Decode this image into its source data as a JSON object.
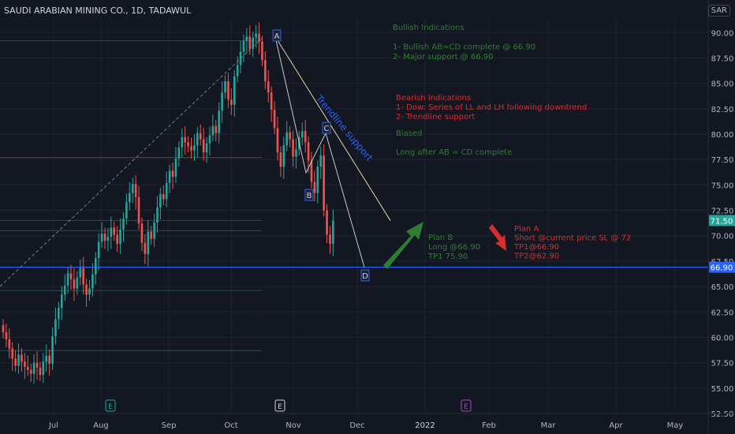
{
  "header": {
    "title": "SAUDI ARABIAN MINING CO., 1D, TADAWUL",
    "currency": "SAR"
  },
  "colors": {
    "bg": "#131722",
    "up": "#26a69a",
    "down": "#ef5350",
    "grid": "#1e222d",
    "axis_text": "#b2b5be",
    "green_text": "#2e7d32",
    "red_text": "#d32f2f",
    "blue_line": "#2962ff"
  },
  "chart_data": {
    "type": "candlestick",
    "ylim": [
      52.5,
      91.5
    ],
    "y_ticks": [
      "52.50",
      "55.00",
      "57.50",
      "60.00",
      "62.50",
      "65.00",
      "67.50",
      "70.00",
      "72.50",
      "75.00",
      "77.50",
      "80.00",
      "82.50",
      "85.00",
      "87.50",
      "90.00"
    ],
    "x_ticks": [
      "Jul",
      "Aug",
      "Sep",
      "Oct",
      "Nov",
      "Dec",
      "2022",
      "Feb",
      "Mar",
      "Apr",
      "May"
    ],
    "price_labels": [
      {
        "value": "71.50",
        "price": 71.5,
        "color": "#26a69a"
      },
      {
        "value": "66.90",
        "price": 66.9,
        "color": "#2962ff"
      }
    ],
    "horizontal_lines": [
      {
        "price": 89.2,
        "color": "#2e4a47"
      },
      {
        "price": 77.7,
        "color": "#8b2f3a"
      },
      {
        "price": 71.5,
        "color": "#2e4a47"
      },
      {
        "price": 70.5,
        "color": "#2e4a47"
      },
      {
        "price": 66.9,
        "color": "#2962ff"
      },
      {
        "price": 64.6,
        "color": "#2e4a47"
      },
      {
        "price": 58.7,
        "color": "#2e4a47"
      }
    ],
    "pattern_points": [
      {
        "label": "A",
        "price": 89.5
      },
      {
        "label": "B",
        "price": 76.2
      },
      {
        "label": "C",
        "price": 80.1
      },
      {
        "label": "D",
        "price": 66.9
      }
    ],
    "trendline_label": "Trendline support",
    "earnings_markers": [
      "E",
      "E",
      "E"
    ],
    "annotations": {
      "bullish": [
        "Bullish Indications",
        "1- Bullish AB=CD complete @ 66.90",
        "2- Major support @ 66.90"
      ],
      "bearish": [
        "Bearish Indications",
        "1- Dow: Series of LL and LH following downtrend",
        "2- Trendline support"
      ],
      "biased": [
        "Biased",
        "Long after AB = CD complete"
      ],
      "plan_b": [
        "Plan B",
        "Long @66.90",
        "TP1 75.90"
      ],
      "plan_a": [
        "Plan A",
        "Short @current price SL @ 72",
        "TP1@66.90",
        "TP2@62.90"
      ]
    },
    "series": {
      "close": [
        60.5,
        59.8,
        58.9,
        57.9,
        57.2,
        58.3,
        57.6,
        57.1,
        56.8,
        56.4,
        57.5,
        57.0,
        56.3,
        57.6,
        58.2,
        57.4,
        60.1,
        61.8,
        62.9,
        64.2,
        65.1,
        66.3,
        65.7,
        64.8,
        65.9,
        66.8,
        65.2,
        64.2,
        64.8,
        66.2,
        67.8,
        69.4,
        70.2,
        69.5,
        69.9,
        70.8,
        70.1,
        69.2,
        70.6,
        71.7,
        73.3,
        74.2,
        75.1,
        73.8,
        71.2,
        69.3,
        68.2,
        70.4,
        69.7,
        71.3,
        72.8,
        74.1,
        73.6,
        75.2,
        76.4,
        75.8,
        77.6,
        78.7,
        79.7,
        79.2,
        78.8,
        78.4,
        78.9,
        80.1,
        79.5,
        78.2,
        79.1,
        79.9,
        80.8,
        80.1,
        82.3,
        84.1,
        85.2,
        83.4,
        82.9,
        85.7,
        86.8,
        88.1,
        89.2,
        89.6,
        88.4,
        89.5,
        89.9,
        89.1,
        87.3,
        85.2,
        84.1,
        82.4,
        80.6,
        78.2,
        76.8,
        78.9,
        80.2,
        79.5,
        77.8,
        78.5,
        79.7,
        80.3,
        79.2,
        77.4,
        75.3,
        74.2,
        76.8,
        77.9,
        72.5,
        70.1,
        69.2,
        71.5
      ],
      "open": [
        61.2,
        60.5,
        59.8,
        58.9,
        57.9,
        57.2,
        58.3,
        57.6,
        57.1,
        56.8,
        56.4,
        57.5,
        57.0,
        56.3,
        57.6,
        58.2,
        57.4,
        60.1,
        61.8,
        62.9,
        64.2,
        65.1,
        66.3,
        65.7,
        64.8,
        65.9,
        66.8,
        65.2,
        64.2,
        64.8,
        66.2,
        67.8,
        69.4,
        70.2,
        69.5,
        69.9,
        70.8,
        70.1,
        69.2,
        70.6,
        71.7,
        73.3,
        74.2,
        75.1,
        73.8,
        71.2,
        69.3,
        68.2,
        70.4,
        69.7,
        71.3,
        72.8,
        74.1,
        73.6,
        75.2,
        76.4,
        75.8,
        77.6,
        78.7,
        79.7,
        79.2,
        78.8,
        78.4,
        78.9,
        80.1,
        79.5,
        78.2,
        79.1,
        79.9,
        80.8,
        80.1,
        82.3,
        84.1,
        85.2,
        83.4,
        82.9,
        85.7,
        86.8,
        88.1,
        89.2,
        89.6,
        88.4,
        89.5,
        89.9,
        89.1,
        87.3,
        85.2,
        84.1,
        82.4,
        80.6,
        78.2,
        76.8,
        78.9,
        80.2,
        79.5,
        77.8,
        78.5,
        79.7,
        80.3,
        79.2,
        77.4,
        75.3,
        74.2,
        76.8,
        77.9,
        72.5,
        70.1,
        69.2
      ]
    }
  }
}
